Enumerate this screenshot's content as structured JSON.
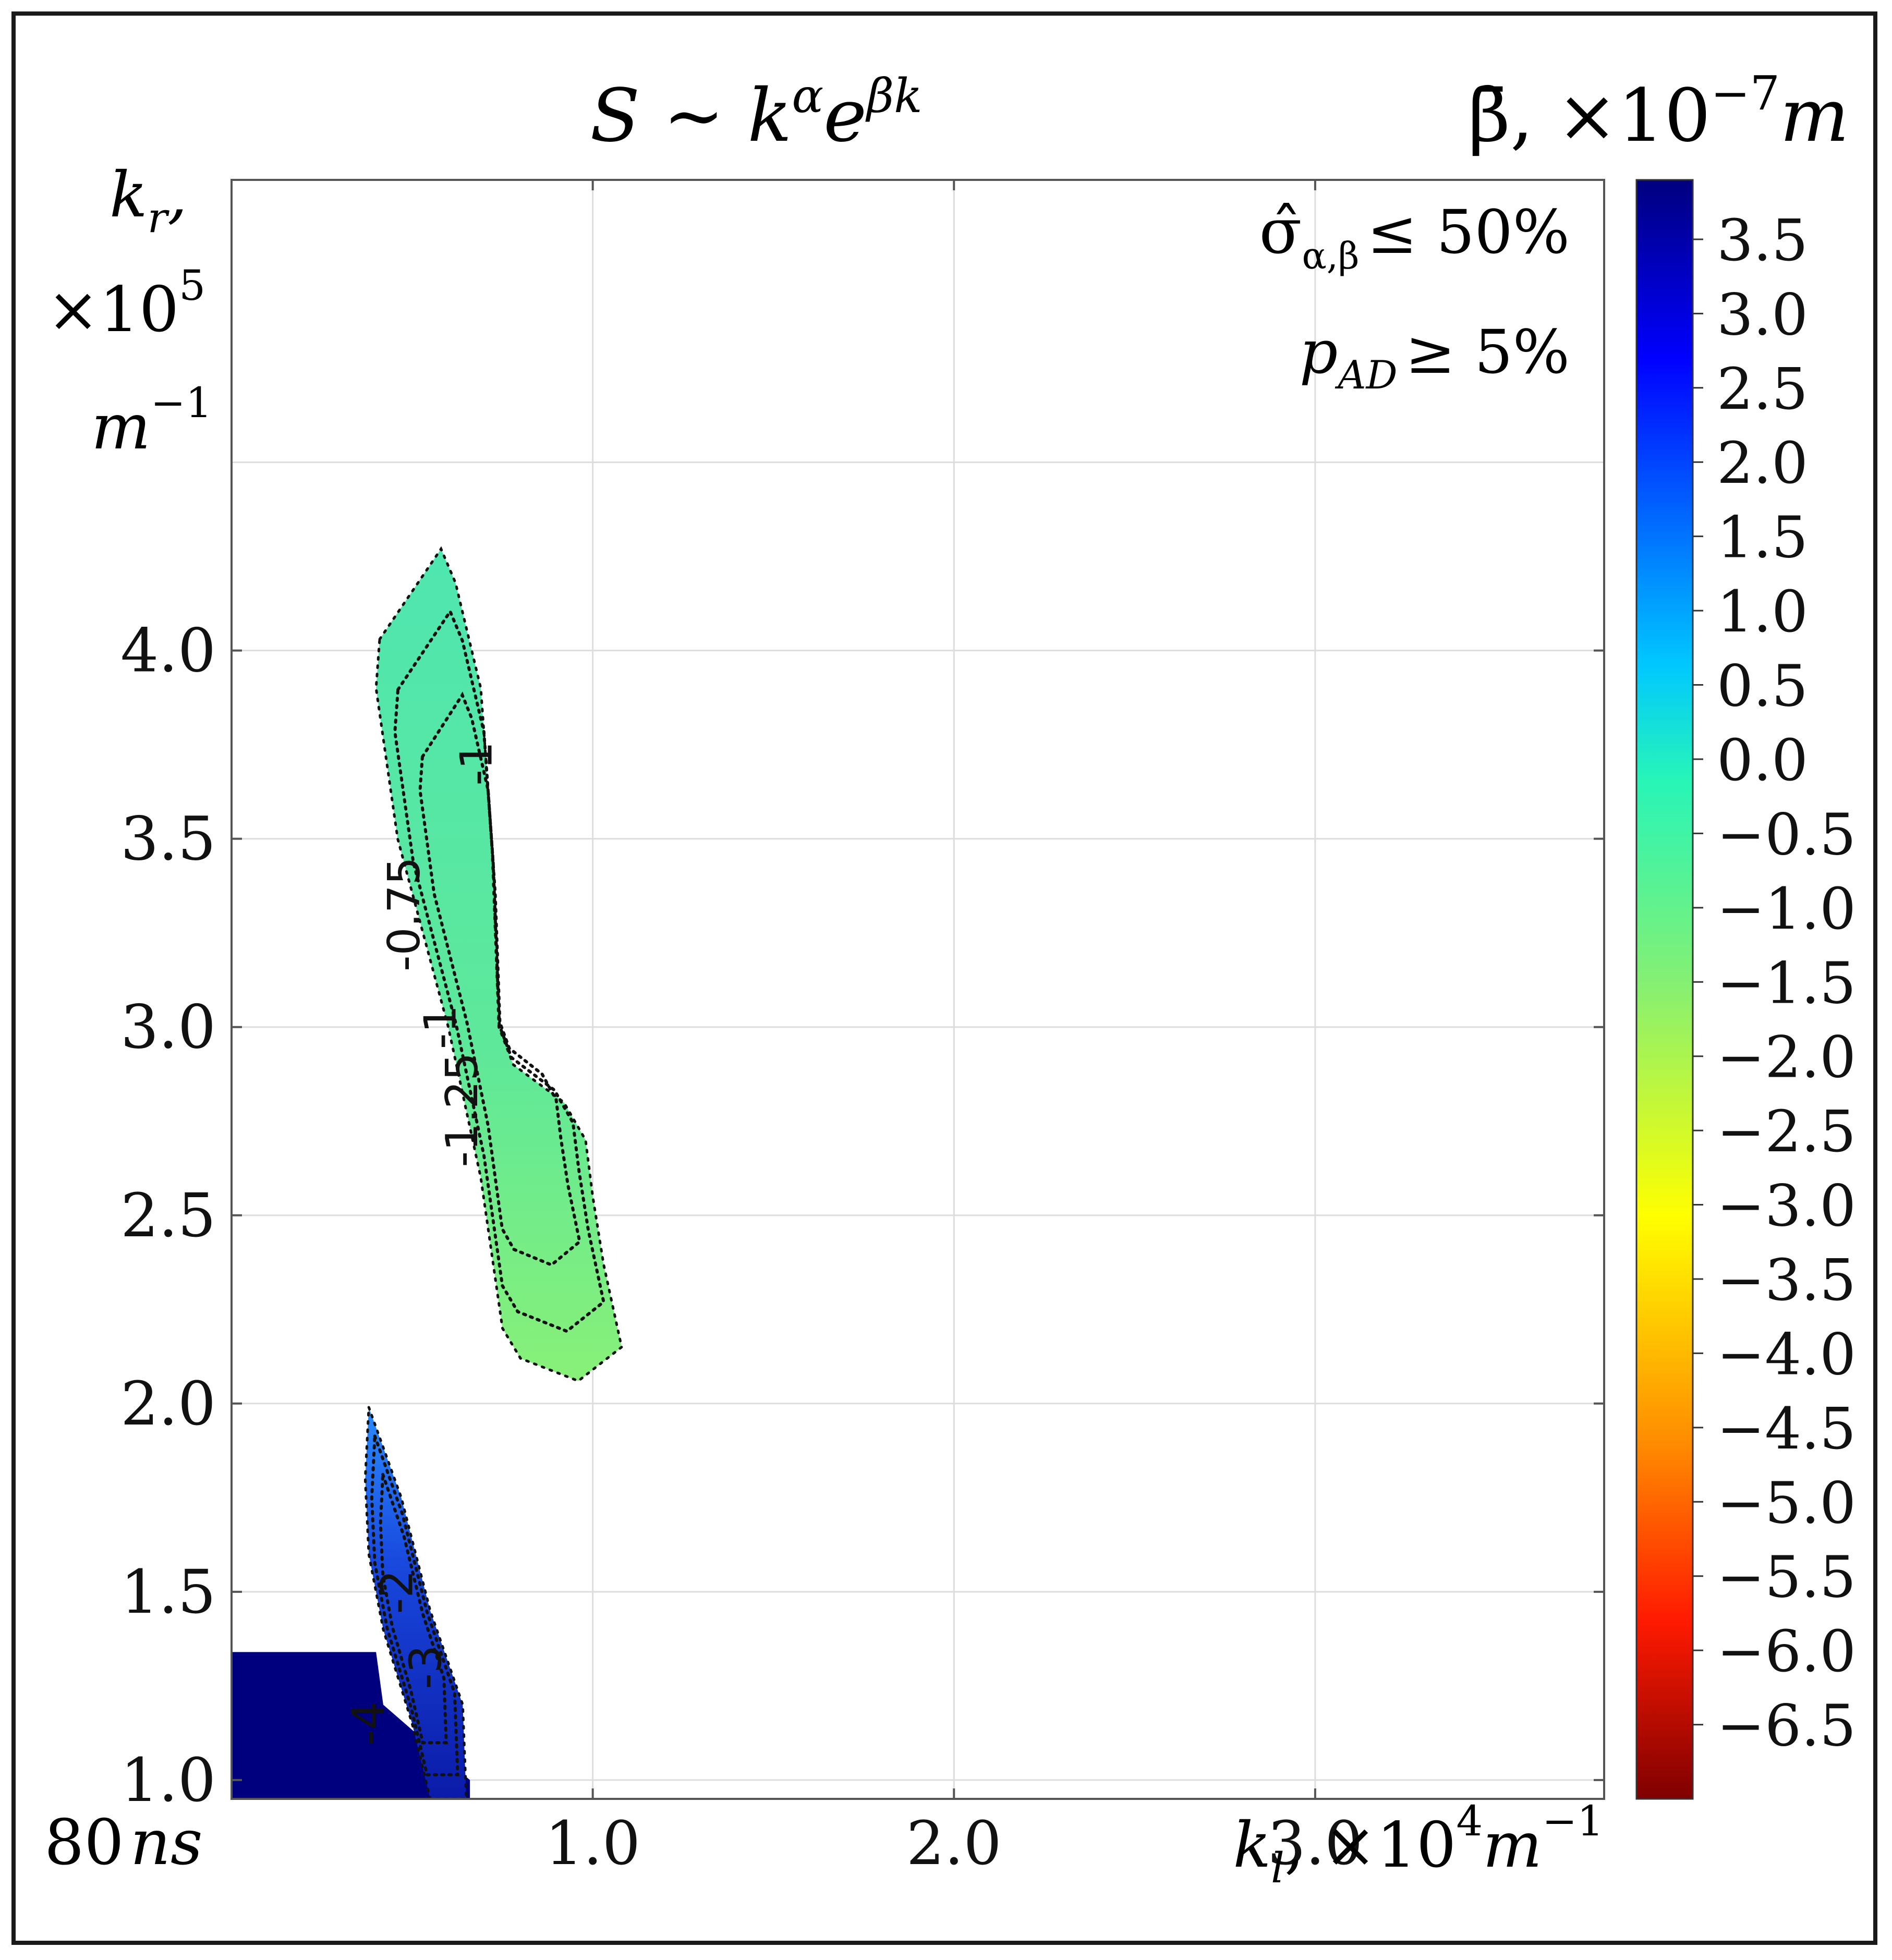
{
  "chart_data": {
    "type": "heatmap",
    "title": "S ~ k^α e^(βk)",
    "title_parts": {
      "main": "S ~ k",
      "sup_alpha": "α",
      "e": "e",
      "sup_beta": "βk"
    },
    "time_label": {
      "value": "80",
      "unit": "ns"
    },
    "x_axis": {
      "label": "k_l , ×10^4 m^-1",
      "label_parts": {
        "k": "k",
        "sub": "l",
        "times": ", ×10",
        "exp": "4",
        "unit": "m",
        "unit_exp": "−1"
      },
      "range": [
        0.0,
        3.8
      ],
      "ticks": [
        "1.0",
        "2.0",
        "3.0"
      ],
      "tick_values": [
        1.0,
        2.0,
        3.0
      ],
      "extra_gridlines": [
        0.0,
        4.0
      ]
    },
    "y_axis": {
      "label_parts": {
        "k": "k",
        "sub": "r",
        "comma": ",",
        "times": "×10",
        "exp": "5",
        "unit": "m",
        "unit_exp": "−1"
      },
      "range": [
        0.95,
        5.25
      ],
      "ticks": [
        "1.0",
        "1.5",
        "2.0",
        "2.5",
        "3.0",
        "3.5",
        "4.0"
      ],
      "tick_values": [
        1.0,
        1.5,
        2.0,
        2.5,
        3.0,
        3.5,
        4.0
      ],
      "extra_gridlines": [
        4.5
      ]
    },
    "annotations": {
      "sigma": {
        "sym": "σ̂",
        "sub": "α,β",
        "text": "≤ 50%"
      },
      "pad": {
        "sym": "p",
        "sub": "AD",
        "text": "≥ 5%"
      }
    },
    "colorbar": {
      "title_parts": {
        "sym": "β̄",
        "times": ", ×10",
        "exp": "−7",
        "unit": "m"
      },
      "range": [
        -7.0,
        3.9
      ],
      "ticks": [
        "3.5",
        "3.0",
        "2.5",
        "2.0",
        "1.5",
        "1.0",
        "0.5",
        "0.0",
        "−0.5",
        "−1.0",
        "−1.5",
        "−2.0",
        "−2.5",
        "−3.0",
        "−3.5",
        "−4.0",
        "−4.5",
        "−5.0",
        "−5.5",
        "−6.0",
        "−6.5"
      ],
      "tick_values": [
        3.5,
        3.0,
        2.5,
        2.0,
        1.5,
        1.0,
        0.5,
        0.0,
        -0.5,
        -1.0,
        -1.5,
        -2.0,
        -2.5,
        -3.0,
        -3.5,
        -4.0,
        -4.5,
        -5.0,
        -5.5,
        -6.0,
        -6.5
      ],
      "colormap": "jet"
    },
    "regions": [
      {
        "name": "upper-green-region",
        "color": "#4fe6a8",
        "color2": "#80f080",
        "polygon": [
          [
            0.41,
            4.03
          ],
          [
            0.58,
            4.27
          ],
          [
            0.62,
            4.18
          ],
          [
            0.69,
            3.9
          ],
          [
            0.72,
            3.5
          ],
          [
            0.74,
            3.0
          ],
          [
            0.78,
            2.9
          ],
          [
            0.92,
            2.8
          ],
          [
            0.98,
            2.7
          ],
          [
            1.0,
            2.55
          ],
          [
            1.03,
            2.37
          ],
          [
            1.08,
            2.15
          ],
          [
            0.96,
            2.06
          ],
          [
            0.8,
            2.12
          ],
          [
            0.75,
            2.2
          ],
          [
            0.69,
            2.6
          ],
          [
            0.6,
            3.0
          ],
          [
            0.46,
            3.5
          ],
          [
            0.4,
            3.9
          ]
        ],
        "contour_labels": [
          {
            "text": "-1",
            "x": 0.72,
            "y": 3.7
          },
          {
            "text": "-0.75",
            "x": 0.52,
            "y": 3.3
          },
          {
            "text": "-1",
            "x": 0.62,
            "y": 3.0
          },
          {
            "text": "-1.25",
            "x": 0.68,
            "y": 2.78
          }
        ]
      },
      {
        "name": "lower-blue-region",
        "color": "#1a3ccc",
        "polygon": [
          [
            0.38,
            1.99
          ],
          [
            0.47,
            1.75
          ],
          [
            0.55,
            1.45
          ],
          [
            0.64,
            1.2
          ],
          [
            0.65,
            0.95
          ],
          [
            0.55,
            0.95
          ],
          [
            0.5,
            1.15
          ],
          [
            0.42,
            1.4
          ],
          [
            0.38,
            1.6
          ],
          [
            0.37,
            1.8
          ]
        ],
        "contour_labels": [
          {
            "text": "-2",
            "x": 0.5,
            "y": 1.5
          },
          {
            "text": "-3",
            "x": 0.58,
            "y": 1.3
          },
          {
            "text": "-4",
            "x": 0.42,
            "y": 1.15
          }
        ]
      },
      {
        "name": "dark-blue-block",
        "color": "#00007f",
        "polygon": [
          [
            0.0,
            1.34
          ],
          [
            0.4,
            1.34
          ],
          [
            0.42,
            1.2
          ],
          [
            0.66,
            1.0
          ],
          [
            0.66,
            0.95
          ],
          [
            0.0,
            0.95
          ]
        ]
      }
    ]
  },
  "colors": {
    "frame": "#1a1a1a",
    "grid": "#dddddd",
    "axis": "#555555"
  }
}
